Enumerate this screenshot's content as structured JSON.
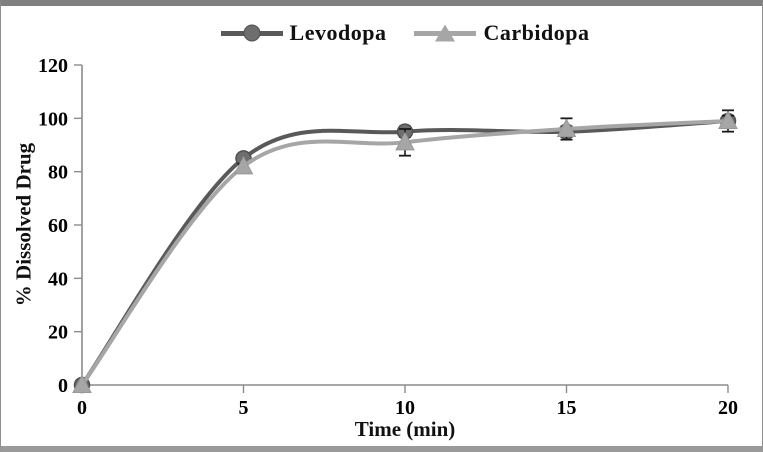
{
  "frame": {
    "top_bar_color": "#808080",
    "bottom_bar_color": "#9a9a9a",
    "side_border_color": "#909090",
    "background": "#ffffff"
  },
  "chart_data": {
    "type": "line",
    "title": "",
    "xlabel": "Time (min)",
    "ylabel": "% Dissolved Drug",
    "x": [
      0,
      5,
      10,
      15,
      20
    ],
    "xlim": [
      0,
      20
    ],
    "ylim": [
      0,
      120
    ],
    "x_ticks": [
      "0",
      "5",
      "10",
      "15",
      "20"
    ],
    "x_tick_values": [
      0,
      5,
      10,
      15,
      20
    ],
    "y_ticks": [
      "0",
      "20",
      "40",
      "60",
      "80",
      "100",
      "120"
    ],
    "y_tick_values": [
      0,
      20,
      40,
      60,
      80,
      100,
      120
    ],
    "grid": false,
    "line_style": "smooth",
    "legend_position": "top-center",
    "series": [
      {
        "name": "Levodopa",
        "marker": "circle",
        "color": "#595959",
        "marker_fill": "#6e6e6e",
        "marker_edge": "#4f4f4f",
        "values": [
          0,
          85,
          95,
          95,
          99
        ],
        "error": [
          0,
          1,
          2,
          2,
          4
        ]
      },
      {
        "name": "Carbidopa",
        "marker": "triangle",
        "color": "#a6a6a6",
        "marker_fill": "#a6a6a6",
        "marker_edge": "#989898",
        "values": [
          0,
          82,
          91,
          96,
          99
        ],
        "error": [
          0,
          1,
          5,
          4,
          2
        ]
      }
    ],
    "error_bar_color": "#1a1a1a",
    "axis_color": "#8c8c8c",
    "tick_label_color": "#000000"
  }
}
